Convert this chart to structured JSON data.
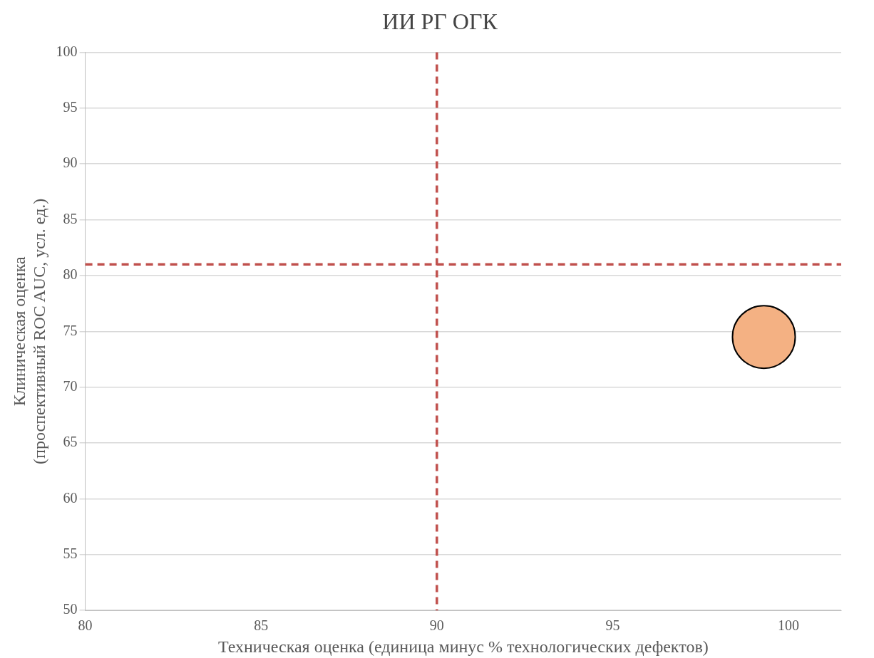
{
  "chart_data": {
    "type": "bubble",
    "title": "ИИ РГ ОГК",
    "xlabel": "Техническая оценка (единица минус % технологических дефектов)",
    "ylabel": "Клиническая оценка\n(проспективный ROC AUC, усл. ед.)",
    "x": [
      99.3
    ],
    "series": [
      {
        "color": "#f4b183",
        "values": [
          74.5
        ],
        "sizes": [
          1
        ]
      }
    ],
    "xlim": [
      80,
      101.5
    ],
    "xticks": [
      80,
      85,
      90,
      95,
      100
    ],
    "ylim": [
      50,
      100
    ],
    "yticks": [
      50,
      55,
      60,
      65,
      70,
      75,
      80,
      85,
      90,
      95,
      100
    ],
    "grid": "y",
    "legend": false,
    "ref_lines": [
      {
        "axis": "x",
        "value": 90,
        "color": "#c0504d",
        "line_style": "dashed"
      },
      {
        "axis": "y",
        "value": 81,
        "color": "#c0504d",
        "line_style": "dashed"
      }
    ]
  }
}
